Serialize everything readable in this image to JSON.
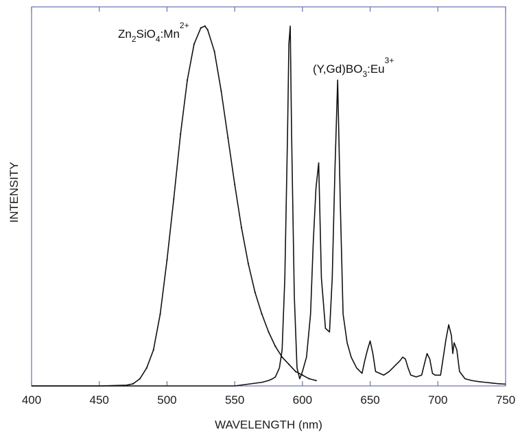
{
  "chart_data": {
    "type": "line",
    "xlabel": "WAVELENGTH (nm)",
    "ylabel": "INTENSITY",
    "xlim": [
      400,
      750
    ],
    "ylim": [
      0,
      1.0
    ],
    "xticks": [
      400,
      450,
      500,
      550,
      600,
      650,
      700,
      750
    ],
    "y_tick_labels": "none",
    "grid": false,
    "legend": "none",
    "colors": {
      "frame": "#6a6fb0",
      "line": "#111111"
    },
    "annotations": [
      {
        "base": "Zn",
        "sub1": "2",
        "mid": "SiO",
        "sub2": "4",
        "tail": ":Mn",
        "sup": "2+"
      },
      {
        "base": "(Y,Gd)BO",
        "sub1": "3",
        "tail": ":Eu",
        "sup": "3+"
      }
    ],
    "series": [
      {
        "x": [
          400,
          450,
          470,
          475,
          480,
          485,
          490,
          495,
          500,
          505,
          510,
          515,
          520,
          525,
          528,
          530,
          535,
          540,
          545,
          550,
          555,
          560,
          565,
          570,
          575,
          580,
          585,
          590,
          595,
          600,
          605,
          610
        ],
        "y": [
          0.0,
          0.0,
          0.002,
          0.006,
          0.02,
          0.05,
          0.1,
          0.2,
          0.35,
          0.52,
          0.7,
          0.85,
          0.95,
          0.995,
          1.0,
          0.99,
          0.93,
          0.82,
          0.69,
          0.56,
          0.44,
          0.34,
          0.26,
          0.2,
          0.15,
          0.11,
          0.08,
          0.06,
          0.04,
          0.03,
          0.02,
          0.015
        ]
      },
      {
        "x": [
          400,
          550,
          570,
          575,
          578,
          580,
          583,
          585,
          587,
          589,
          590,
          591,
          592,
          594,
          596,
          598,
          600,
          603,
          606,
          608,
          610,
          612,
          614,
          617,
          620,
          622,
          624,
          626,
          628,
          630,
          633,
          636,
          640,
          644,
          646,
          648,
          650,
          652,
          654,
          657,
          660,
          664,
          668,
          672,
          674,
          676,
          678,
          680,
          684,
          688,
          690,
          692,
          694,
          696,
          698,
          702,
          704,
          706,
          708,
          710,
          711,
          712,
          714,
          716,
          720,
          725,
          730,
          735,
          740,
          745,
          750
        ],
        "y": [
          0.0,
          0.0,
          0.01,
          0.015,
          0.02,
          0.025,
          0.05,
          0.1,
          0.3,
          0.7,
          0.95,
          1.0,
          0.7,
          0.25,
          0.05,
          0.02,
          0.04,
          0.08,
          0.2,
          0.4,
          0.55,
          0.62,
          0.3,
          0.16,
          0.15,
          0.3,
          0.6,
          0.85,
          0.5,
          0.2,
          0.12,
          0.08,
          0.05,
          0.035,
          0.07,
          0.1,
          0.125,
          0.09,
          0.04,
          0.035,
          0.03,
          0.04,
          0.055,
          0.07,
          0.08,
          0.075,
          0.05,
          0.03,
          0.025,
          0.03,
          0.06,
          0.09,
          0.075,
          0.035,
          0.03,
          0.03,
          0.08,
          0.13,
          0.17,
          0.14,
          0.09,
          0.12,
          0.1,
          0.04,
          0.02,
          0.015,
          0.012,
          0.01,
          0.008,
          0.006,
          0.005
        ]
      }
    ]
  }
}
